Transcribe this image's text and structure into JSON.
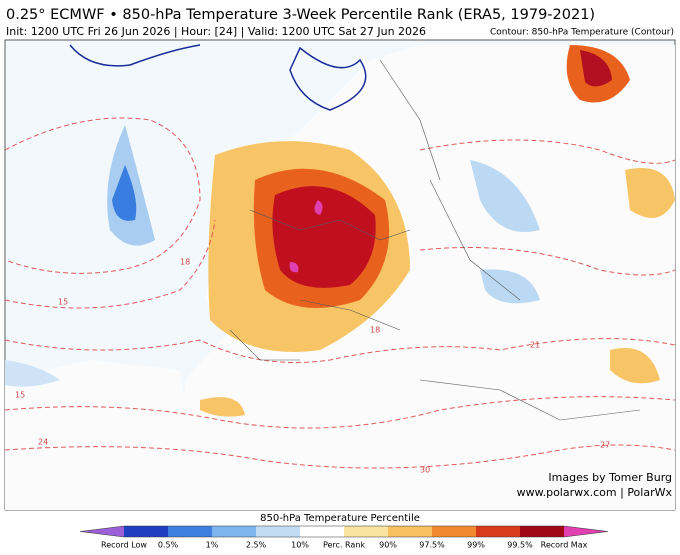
{
  "header": {
    "title": "0.25° ECMWF • 850-hPa Temperature 3-Week Percentile Rank (ERA5, 1979-2021)",
    "subtitle": "Init: 1200 UTC Fri 26 Jun 2026 | Hour: [24] | Valid: 1200 UTC Sat 27 Jun 2026",
    "contour_note": "Contour: 850-hPa Temperature (Contour)"
  },
  "map": {
    "contour_labels": [
      "15",
      "18",
      "24",
      "30",
      "21",
      "18",
      "15",
      "27"
    ],
    "credit": [
      "Images by Tomer Burg",
      "www.polarwx.com | PolarWx"
    ]
  },
  "colorbar": {
    "title": "850-hPa Temperature Percentile",
    "labels": [
      "Record Low",
      "0.5%",
      "1%",
      "2.5%",
      "10%",
      "Perc. Rank",
      "90%",
      "97.5%",
      "99%",
      "99.5%",
      "Record Max"
    ]
  }
}
